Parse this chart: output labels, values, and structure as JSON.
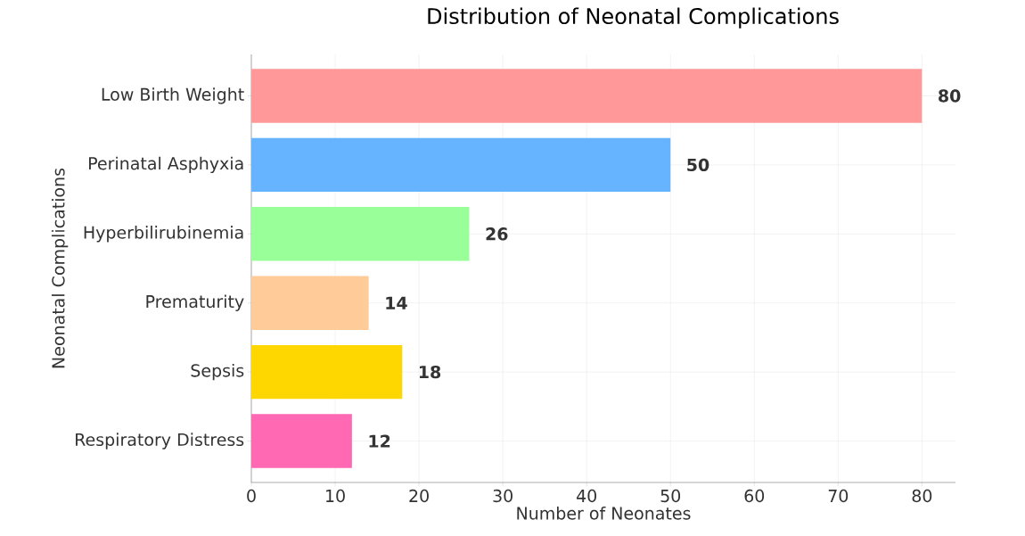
{
  "chart_data": {
    "type": "bar",
    "orientation": "horizontal",
    "title": "Distribution of Neonatal Complications",
    "xlabel": "Number of Neonates",
    "ylabel": "Neonatal Complications",
    "categories": [
      "Low Birth Weight",
      "Perinatal Asphyxia",
      "Hyperbilirubinemia",
      "Prematurity",
      "Sepsis",
      "Respiratory Distress"
    ],
    "values": [
      80,
      50,
      26,
      14,
      18,
      12
    ],
    "colors": [
      "#ff9999",
      "#66b3ff",
      "#99ff99",
      "#ffcc99",
      "#ffd700",
      "#ff69b4"
    ],
    "xlim": [
      0,
      84
    ],
    "xticks": [
      0,
      10,
      20,
      30,
      40,
      50,
      60,
      70,
      80
    ],
    "grid": true,
    "data_labels": true
  }
}
